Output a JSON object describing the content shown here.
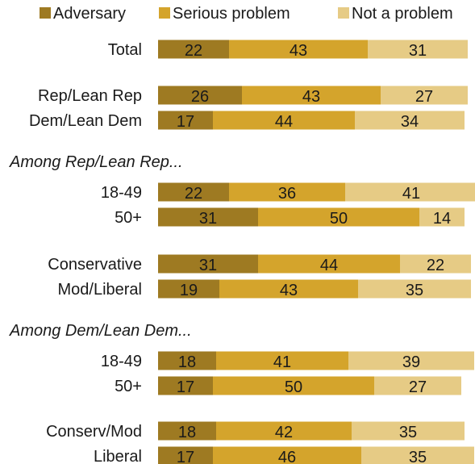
{
  "colors": {
    "adversary": "#9e7a22",
    "serious_problem": "#d4a42c",
    "not_a_problem": "#e6cb85",
    "text": "#1a1a1a"
  },
  "chart_data": {
    "type": "bar",
    "orientation": "horizontal",
    "stacked": true,
    "xlim": [
      0,
      100
    ],
    "grid": false,
    "legend_placement": "top",
    "legend": [
      "Adversary",
      "Serious problem",
      "Not a problem"
    ],
    "series": [
      {
        "name": "Adversary",
        "color_key": "adversary",
        "values": [
          22,
          26,
          17,
          22,
          31,
          31,
          19,
          18,
          17,
          18,
          17
        ]
      },
      {
        "name": "Serious problem",
        "color_key": "serious_problem",
        "values": [
          43,
          43,
          44,
          36,
          50,
          44,
          43,
          41,
          50,
          42,
          46
        ]
      },
      {
        "name": "Not a problem",
        "color_key": "not_a_problem",
        "values": [
          31,
          27,
          34,
          41,
          14,
          22,
          35,
          39,
          27,
          35,
          35
        ]
      }
    ],
    "categories": [
      "Total",
      "Rep/Lean Rep",
      "Dem/Lean Dem",
      "18-49",
      "50+",
      "Conservative",
      "Mod/Liberal",
      "18-49",
      "50+",
      "Conserv/Mod",
      "Liberal"
    ],
    "group_notes": [
      {
        "label": "Among Rep/Lean Rep...",
        "before_index": 3
      },
      {
        "label": "Among Dem/Lean Dem...",
        "before_index": 7
      }
    ]
  }
}
